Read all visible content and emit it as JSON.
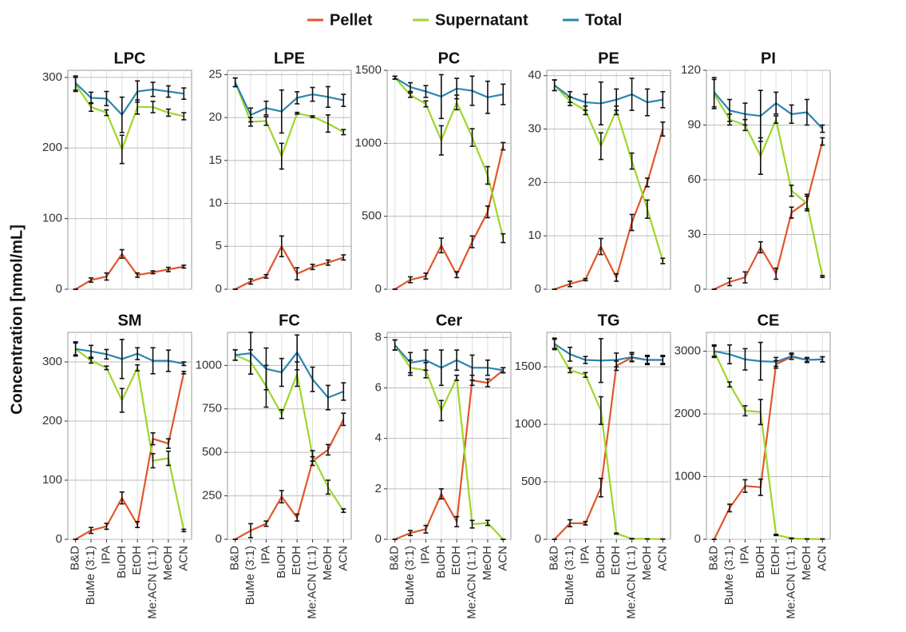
{
  "legend": [
    {
      "name": "Pellet",
      "color": "#e2562b"
    },
    {
      "name": "Supernatant",
      "color": "#9ed62a"
    },
    {
      "name": "Total",
      "color": "#2a87b0"
    }
  ],
  "y_label": "Concentration [nmol/mL]",
  "categories": [
    "B&D",
    "BuMe (3:1)",
    "IPA",
    "BuOH",
    "EtOH",
    "Me:ACN (1:1)",
    "MeOH",
    "ACN"
  ],
  "chart_data": [
    {
      "type": "line",
      "title": "LPC",
      "ylim": [
        0,
        310
      ],
      "yticks": [
        0,
        100,
        200,
        300
      ],
      "grid": true,
      "series": [
        {
          "values": [
            0,
            13,
            18,
            50,
            20,
            24,
            28,
            32
          ],
          "errors": [
            0,
            3,
            5,
            6,
            3,
            2,
            3,
            2
          ]
        },
        {
          "values": [
            290,
            258,
            250,
            198,
            258,
            258,
            250,
            245
          ],
          "errors": [
            10,
            6,
            4,
            20,
            10,
            8,
            5,
            5
          ]
        },
        {
          "values": [
            292,
            271,
            270,
            247,
            280,
            283,
            280,
            277
          ],
          "errors": [
            10,
            8,
            10,
            25,
            15,
            10,
            8,
            8
          ]
        }
      ]
    },
    {
      "type": "line",
      "title": "LPE",
      "ylim": [
        0,
        25.5
      ],
      "yticks": [
        0,
        5,
        10,
        15,
        20,
        25
      ],
      "grid": true,
      "series": [
        {
          "values": [
            0,
            0.9,
            1.5,
            5.0,
            1.8,
            2.6,
            3.1,
            3.7
          ],
          "errors": [
            0,
            0.3,
            0.2,
            1.2,
            0.7,
            0.3,
            0.3,
            0.3
          ]
        },
        {
          "values": [
            24.1,
            19.5,
            19.6,
            15.5,
            20.5,
            20.1,
            19.3,
            18.3
          ],
          "errors": [
            0.5,
            0.5,
            0.5,
            1.5,
            0.1,
            0.1,
            1.0,
            0.3
          ]
        },
        {
          "values": [
            24.1,
            20.3,
            21.1,
            20.7,
            22.3,
            22.7,
            22.4,
            22.0
          ],
          "errors": [
            0.5,
            0.8,
            0.8,
            2.5,
            0.7,
            0.8,
            1.2,
            0.7
          ]
        }
      ]
    },
    {
      "type": "line",
      "title": "PC",
      "ylim": [
        0,
        1500
      ],
      "yticks": [
        0,
        500,
        1000,
        1500
      ],
      "grid": true,
      "series": [
        {
          "values": [
            0,
            65,
            90,
            300,
            100,
            325,
            530,
            980
          ],
          "errors": [
            0,
            20,
            20,
            50,
            20,
            40,
            40,
            25
          ]
        },
        {
          "values": [
            1450,
            1330,
            1270,
            1020,
            1280,
            1040,
            780,
            350
          ],
          "errors": [
            10,
            15,
            20,
            100,
            50,
            60,
            60,
            30
          ]
        },
        {
          "values": [
            1450,
            1385,
            1355,
            1320,
            1375,
            1360,
            1315,
            1335
          ],
          "errors": [
            10,
            30,
            40,
            150,
            70,
            100,
            110,
            70
          ]
        }
      ]
    },
    {
      "type": "line",
      "title": "PE",
      "ylim": [
        0,
        41
      ],
      "yticks": [
        0,
        10,
        20,
        30,
        40
      ],
      "grid": true,
      "series": [
        {
          "values": [
            0,
            1,
            1.8,
            8,
            2.2,
            12.5,
            20,
            30
          ],
          "errors": [
            0,
            0.5,
            0.2,
            1.5,
            0.7,
            1.5,
            0.8,
            1.3
          ]
        },
        {
          "values": [
            38.2,
            35.2,
            33.5,
            26.8,
            33.5,
            24,
            15,
            5.3
          ],
          "errors": [
            1,
            0.8,
            0.8,
            2.5,
            0.8,
            1.5,
            1.7,
            0.5
          ]
        },
        {
          "values": [
            38.2,
            36,
            35,
            34.8,
            35.5,
            36.5,
            35,
            35.5
          ],
          "errors": [
            1,
            1,
            1.5,
            4,
            2,
            3,
            2.5,
            1.5
          ]
        }
      ]
    },
    {
      "type": "line",
      "title": "PI",
      "ylim": [
        0,
        120
      ],
      "yticks": [
        0,
        30,
        60,
        90,
        120
      ],
      "grid": true,
      "series": [
        {
          "values": [
            0,
            4,
            6.5,
            23,
            8.5,
            42,
            48,
            81
          ],
          "errors": [
            0,
            2,
            3,
            3,
            3,
            3,
            4,
            2
          ]
        },
        {
          "values": [
            107,
            93,
            90,
            73,
            93,
            54,
            47,
            7
          ],
          "errors": [
            8,
            3,
            3,
            10,
            2,
            3,
            4,
            0.5
          ]
        },
        {
          "values": [
            108,
            98,
            96,
            95,
            102,
            96,
            97,
            88
          ],
          "errors": [
            8,
            6,
            6,
            14,
            6,
            5,
            7,
            2
          ]
        }
      ]
    },
    {
      "type": "line",
      "title": "SM",
      "ylim": [
        0,
        350
      ],
      "yticks": [
        0,
        100,
        200,
        300
      ],
      "grid": true,
      "series": [
        {
          "values": [
            0,
            15,
            22,
            70,
            25,
            170,
            162,
            282
          ],
          "errors": [
            0,
            5,
            5,
            10,
            5,
            10,
            8,
            2
          ]
        },
        {
          "values": [
            322,
            302,
            290,
            235,
            290,
            133,
            137,
            15
          ],
          "errors": [
            10,
            4,
            3,
            20,
            5,
            12,
            12,
            2
          ]
        },
        {
          "values": [
            322,
            318,
            313,
            305,
            314,
            302,
            302,
            297
          ],
          "errors": [
            12,
            10,
            8,
            33,
            10,
            22,
            18,
            3
          ]
        }
      ]
    },
    {
      "type": "line",
      "title": "FC",
      "ylim": [
        0,
        1190
      ],
      "yticks": [
        0,
        250,
        500,
        750,
        1000
      ],
      "grid": true,
      "series": [
        {
          "values": [
            0,
            50,
            90,
            245,
            125,
            450,
            515,
            690
          ],
          "errors": [
            0,
            40,
            15,
            35,
            20,
            25,
            30,
            35
          ]
        },
        {
          "values": [
            1060,
            1020,
            880,
            720,
            950,
            480,
            300,
            165
          ],
          "errors": [
            30,
            70,
            120,
            25,
            70,
            30,
            40,
            10
          ]
        },
        {
          "values": [
            1060,
            1070,
            980,
            960,
            1075,
            920,
            815,
            850
          ],
          "errors": [
            30,
            120,
            120,
            80,
            100,
            70,
            70,
            50
          ]
        }
      ]
    },
    {
      "type": "line",
      "title": "Cer",
      "ylim": [
        0,
        8.2
      ],
      "yticks": [
        0,
        2,
        4,
        6,
        8
      ],
      "grid": true,
      "series": [
        {
          "values": [
            0,
            0.25,
            0.4,
            1.8,
            0.7,
            6.3,
            6.2,
            6.7
          ],
          "errors": [
            0,
            0.1,
            0.15,
            0.2,
            0.2,
            0.2,
            0.15,
            0.1
          ]
        },
        {
          "values": [
            7.7,
            6.8,
            6.7,
            5.1,
            6.4,
            0.6,
            0.65,
            0
          ],
          "errors": [
            0.2,
            0.3,
            0.3,
            0.4,
            0.1,
            0.15,
            0.1,
            0
          ]
        },
        {
          "values": [
            7.7,
            7.0,
            7.1,
            6.8,
            7.1,
            6.8,
            6.8,
            6.7
          ],
          "errors": [
            0.2,
            0.4,
            0.4,
            0.7,
            0.4,
            0.5,
            0.3,
            0.1
          ]
        }
      ]
    },
    {
      "type": "line",
      "title": "TG",
      "ylim": [
        0,
        1800
      ],
      "yticks": [
        0,
        500,
        1000,
        1500
      ],
      "grid": true,
      "series": [
        {
          "values": [
            0,
            140,
            140,
            450,
            1510,
            1580,
            1560,
            1560
          ],
          "errors": [
            0,
            30,
            15,
            80,
            40,
            30,
            30,
            30
          ]
        },
        {
          "values": [
            1700,
            1470,
            1430,
            1120,
            50,
            5,
            3,
            2
          ],
          "errors": [
            40,
            20,
            20,
            120,
            5,
            2,
            1,
            1
          ]
        },
        {
          "values": [
            1700,
            1610,
            1560,
            1555,
            1560,
            1585,
            1560,
            1560
          ],
          "errors": [
            50,
            60,
            30,
            190,
            60,
            40,
            40,
            40
          ]
        }
      ]
    },
    {
      "type": "line",
      "title": "CE",
      "ylim": [
        0,
        3300
      ],
      "yticks": [
        0,
        1000,
        2000,
        3000
      ],
      "grid": true,
      "series": [
        {
          "values": [
            0,
            500,
            850,
            830,
            2790,
            2910,
            2860,
            2870
          ],
          "errors": [
            0,
            60,
            100,
            130,
            60,
            40,
            30,
            40
          ]
        },
        {
          "values": [
            3000,
            2470,
            2050,
            2030,
            70,
            15,
            5,
            5
          ],
          "errors": [
            80,
            40,
            80,
            200,
            10,
            5,
            2,
            2
          ]
        },
        {
          "values": [
            3000,
            2950,
            2870,
            2840,
            2830,
            2920,
            2860,
            2870
          ],
          "errors": [
            100,
            150,
            170,
            300,
            70,
            50,
            40,
            40
          ]
        }
      ]
    }
  ]
}
